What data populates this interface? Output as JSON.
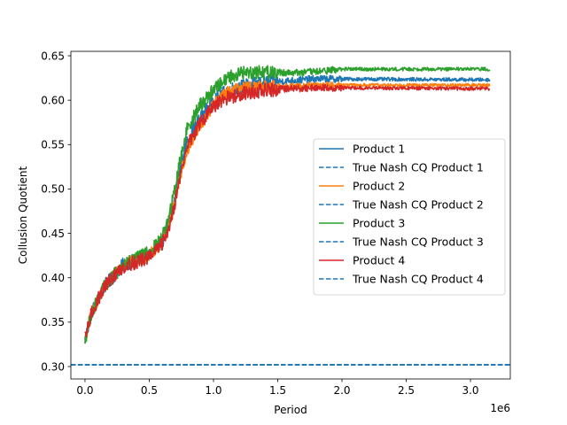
{
  "chart_data": {
    "type": "line",
    "title": "",
    "xlabel": "Period",
    "ylabel": "Collusion Quotient",
    "x_offset_label": "1e6",
    "xlim": [
      -0.11,
      3.31
    ],
    "ylim": [
      0.286,
      0.655
    ],
    "x_ticks": [
      0.0,
      0.5,
      1.0,
      1.5,
      2.0,
      2.5,
      3.0
    ],
    "x_tick_labels": [
      "0.0",
      "0.5",
      "1.0",
      "1.5",
      "2.0",
      "2.5",
      "3.0"
    ],
    "y_ticks": [
      0.3,
      0.35,
      0.4,
      0.45,
      0.5,
      0.55,
      0.6,
      0.65
    ],
    "y_tick_labels": [
      "0.30",
      "0.35",
      "0.40",
      "0.45",
      "0.50",
      "0.55",
      "0.60",
      "0.65"
    ],
    "grid": false,
    "legend_position": "center-right",
    "x_scale_note": "x values in units of 1e6 periods",
    "series": [
      {
        "name": "Product 1",
        "style": "solid",
        "color": "#1f77b4",
        "noise": 0.008,
        "points": [
          [
            0.0,
            0.33
          ],
          [
            0.05,
            0.36
          ],
          [
            0.15,
            0.39
          ],
          [
            0.3,
            0.415
          ],
          [
            0.5,
            0.425
          ],
          [
            0.6,
            0.44
          ],
          [
            0.65,
            0.46
          ],
          [
            0.7,
            0.49
          ],
          [
            0.75,
            0.53
          ],
          [
            0.8,
            0.555
          ],
          [
            0.9,
            0.58
          ],
          [
            1.0,
            0.6
          ],
          [
            1.1,
            0.61
          ],
          [
            1.2,
            0.615
          ],
          [
            1.4,
            0.62
          ],
          [
            1.6,
            0.622
          ],
          [
            1.8,
            0.624
          ],
          [
            3.15,
            0.623
          ]
        ]
      },
      {
        "name": "True Nash CQ Product 1",
        "style": "dashed",
        "color": "#1f77b4",
        "constant": 0.302
      },
      {
        "name": "Product 2",
        "style": "solid",
        "color": "#ff7f0e",
        "noise": 0.007,
        "points": [
          [
            0.0,
            0.33
          ],
          [
            0.05,
            0.36
          ],
          [
            0.15,
            0.39
          ],
          [
            0.3,
            0.415
          ],
          [
            0.5,
            0.425
          ],
          [
            0.6,
            0.44
          ],
          [
            0.65,
            0.46
          ],
          [
            0.7,
            0.49
          ],
          [
            0.75,
            0.52
          ],
          [
            0.8,
            0.545
          ],
          [
            0.9,
            0.57
          ],
          [
            1.0,
            0.595
          ],
          [
            1.1,
            0.608
          ],
          [
            1.2,
            0.613
          ],
          [
            1.4,
            0.615
          ],
          [
            1.6,
            0.616
          ],
          [
            1.8,
            0.617
          ],
          [
            3.15,
            0.617
          ]
        ]
      },
      {
        "name": "True Nash CQ Product 2",
        "style": "dashed",
        "color": "#1f77b4",
        "constant": 0.302
      },
      {
        "name": "Product 3",
        "style": "solid",
        "color": "#2ca02c",
        "noise": 0.008,
        "points": [
          [
            0.0,
            0.33
          ],
          [
            0.05,
            0.36
          ],
          [
            0.15,
            0.39
          ],
          [
            0.3,
            0.415
          ],
          [
            0.5,
            0.428
          ],
          [
            0.6,
            0.445
          ],
          [
            0.65,
            0.465
          ],
          [
            0.7,
            0.5
          ],
          [
            0.75,
            0.54
          ],
          [
            0.8,
            0.57
          ],
          [
            0.9,
            0.595
          ],
          [
            1.0,
            0.612
          ],
          [
            1.1,
            0.625
          ],
          [
            1.2,
            0.63
          ],
          [
            1.3,
            0.632
          ],
          [
            1.6,
            0.631
          ],
          [
            1.8,
            0.632
          ],
          [
            2.0,
            0.635
          ],
          [
            3.15,
            0.635
          ]
        ]
      },
      {
        "name": "True Nash CQ Product 3",
        "style": "dashed",
        "color": "#1f77b4",
        "constant": 0.302
      },
      {
        "name": "Product 4",
        "style": "solid",
        "color": "#d62728",
        "noise": 0.008,
        "points": [
          [
            0.0,
            0.33
          ],
          [
            0.05,
            0.36
          ],
          [
            0.15,
            0.39
          ],
          [
            0.3,
            0.413
          ],
          [
            0.5,
            0.423
          ],
          [
            0.6,
            0.438
          ],
          [
            0.65,
            0.455
          ],
          [
            0.7,
            0.485
          ],
          [
            0.75,
            0.52
          ],
          [
            0.8,
            0.55
          ],
          [
            0.9,
            0.575
          ],
          [
            1.0,
            0.592
          ],
          [
            1.1,
            0.602
          ],
          [
            1.2,
            0.607
          ],
          [
            1.4,
            0.611
          ],
          [
            1.6,
            0.613
          ],
          [
            1.8,
            0.614
          ],
          [
            3.15,
            0.613
          ]
        ]
      },
      {
        "name": "True Nash CQ Product 4",
        "style": "dashed",
        "color": "#1f77b4",
        "constant": 0.302
      }
    ]
  }
}
